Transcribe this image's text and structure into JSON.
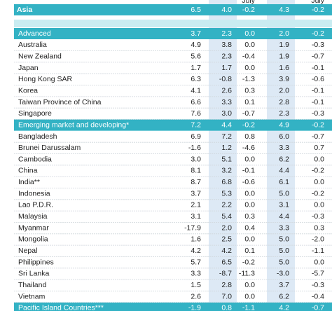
{
  "table": {
    "header_labels": [
      "July",
      "July"
    ],
    "rows": [
      {
        "name": "Asia",
        "group": true,
        "values": [
          "6.5",
          "4.0",
          "-0.2",
          "4.3",
          "-0.2"
        ]
      },
      {
        "name": "Advanced",
        "group": true,
        "values": [
          "3.7",
          "2.3",
          "0.0",
          "2.0",
          "-0.2"
        ]
      },
      {
        "name": "Australia",
        "values": [
          "4.9",
          "3.8",
          "0.0",
          "1.9",
          "-0.3"
        ]
      },
      {
        "name": "New Zealand",
        "values": [
          "5.6",
          "2.3",
          "-0.4",
          "1.9",
          "-0.7"
        ]
      },
      {
        "name": "Japan",
        "values": [
          "1.7",
          "1.7",
          "0.0",
          "1.6",
          "-0.1"
        ]
      },
      {
        "name": "Hong Kong SAR",
        "values": [
          "6.3",
          "-0.8",
          "-1.3",
          "3.9",
          "-0.6"
        ]
      },
      {
        "name": "Korea",
        "values": [
          "4.1",
          "2.6",
          "0.3",
          "2.0",
          "-0.1"
        ]
      },
      {
        "name": "Taiwan Province of China",
        "values": [
          "6.6",
          "3.3",
          "0.1",
          "2.8",
          "-0.1"
        ]
      },
      {
        "name": "Singapore",
        "values": [
          "7.6",
          "3.0",
          "-0.7",
          "2.3",
          "-0.3"
        ]
      },
      {
        "name": "Emerging market and developing*",
        "group": true,
        "values": [
          "7.2",
          "4.4",
          "-0.2",
          "4.9",
          "-0.2"
        ]
      },
      {
        "name": "Bangladesh",
        "values": [
          "6.9",
          "7.2",
          "0.8",
          "6.0",
          "-0.7"
        ]
      },
      {
        "name": "Brunei Darussalam",
        "values": [
          "-1.6",
          "1.2",
          "-4.6",
          "3.3",
          "0.7"
        ]
      },
      {
        "name": "Cambodia",
        "values": [
          "3.0",
          "5.1",
          "0.0",
          "6.2",
          "0.0"
        ]
      },
      {
        "name": "China",
        "values": [
          "8.1",
          "3.2",
          "-0.1",
          "4.4",
          "-0.2"
        ]
      },
      {
        "name": "India**",
        "values": [
          "8.7",
          "6.8",
          "-0.6",
          "6.1",
          "0.0"
        ]
      },
      {
        "name": "Indonesia",
        "values": [
          "3.7",
          "5.3",
          "0.0",
          "5.0",
          "-0.2"
        ]
      },
      {
        "name": "Lao P.D.R.",
        "values": [
          "2.1",
          "2.2",
          "0.0",
          "3.1",
          "0.0"
        ]
      },
      {
        "name": "Malaysia",
        "values": [
          "3.1",
          "5.4",
          "0.3",
          "4.4",
          "-0.3"
        ]
      },
      {
        "name": "Myanmar",
        "values": [
          "-17.9",
          "2.0",
          "0.4",
          "3.3",
          "0.3"
        ]
      },
      {
        "name": "Mongolia",
        "values": [
          "1.6",
          "2.5",
          "0.0",
          "5.0",
          "-2.0"
        ]
      },
      {
        "name": "Nepal",
        "values": [
          "4.2",
          "4.2",
          "0.1",
          "5.0",
          "-1.1"
        ]
      },
      {
        "name": "Philippines",
        "values": [
          "5.7",
          "6.5",
          "-0.2",
          "5.0",
          "0.0"
        ]
      },
      {
        "name": "Sri Lanka",
        "values": [
          "3.3",
          "-8.7",
          "-11.3",
          "-3.0",
          "-5.7"
        ]
      },
      {
        "name": "Thailand",
        "values": [
          "1.5",
          "2.8",
          "0.0",
          "3.7",
          "-0.3"
        ]
      },
      {
        "name": "Vietnam",
        "values": [
          "2.6",
          "7.0",
          "0.0",
          "6.2",
          "-0.4"
        ]
      },
      {
        "name": "Pacific Island Countries***",
        "group": true,
        "values": [
          "-1.9",
          "0.8",
          "-1.1",
          "4.2",
          "-0.7"
        ]
      }
    ]
  }
}
